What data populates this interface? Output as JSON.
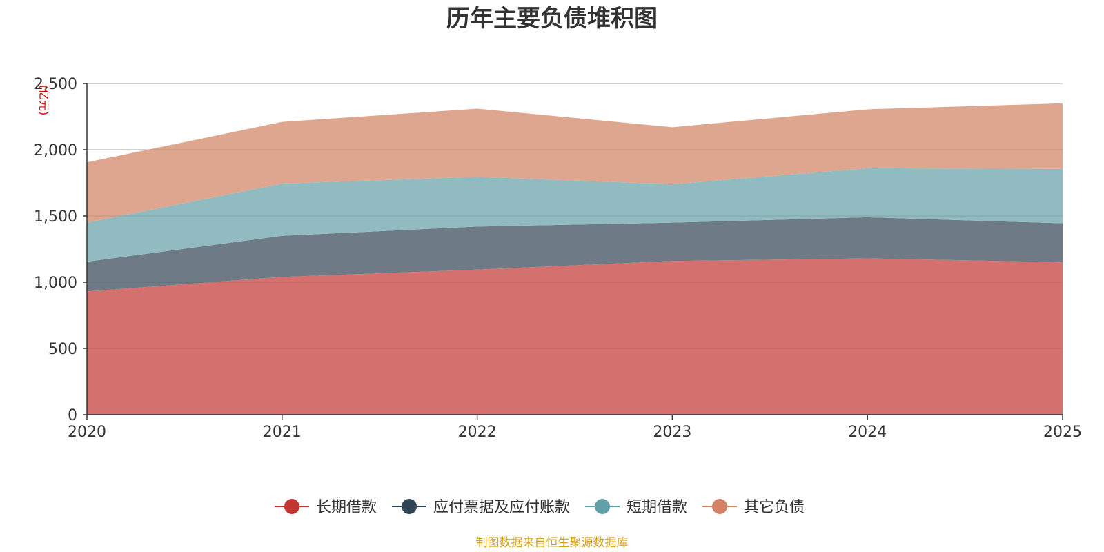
{
  "chart_data": {
    "type": "area",
    "stacked": true,
    "title": "历年主要负债堆积图",
    "ylabel": "(亿元)",
    "xlabel": "",
    "x": [
      "2020",
      "2021",
      "2022",
      "2023",
      "2024",
      "2025"
    ],
    "ylim": [
      0,
      2500
    ],
    "yticks": [
      0,
      500,
      1000,
      1500,
      2000,
      2500
    ],
    "ytick_labels": [
      "0",
      "500",
      "1,000",
      "1,500",
      "2,000",
      "2,500"
    ],
    "grid": true,
    "legend_position": "bottom",
    "series": [
      {
        "name": "长期借款",
        "color": "#c23531",
        "fill": "#d4706d",
        "values": [
          930,
          1040,
          1095,
          1160,
          1180,
          1150
        ]
      },
      {
        "name": "应付票据及应付账款",
        "color": "#2f4554",
        "fill": "#6e7b86",
        "values": [
          225,
          310,
          325,
          290,
          310,
          295
        ]
      },
      {
        "name": "短期借款",
        "color": "#61a0a8",
        "fill": "#91bbc1",
        "values": [
          295,
          395,
          375,
          290,
          370,
          410
        ]
      },
      {
        "name": "其它负债",
        "color": "#d48265",
        "fill": "#dfa68f",
        "values": [
          455,
          465,
          515,
          430,
          445,
          495
        ]
      }
    ],
    "source_note": "制图数据来自恒生聚源数据库"
  }
}
